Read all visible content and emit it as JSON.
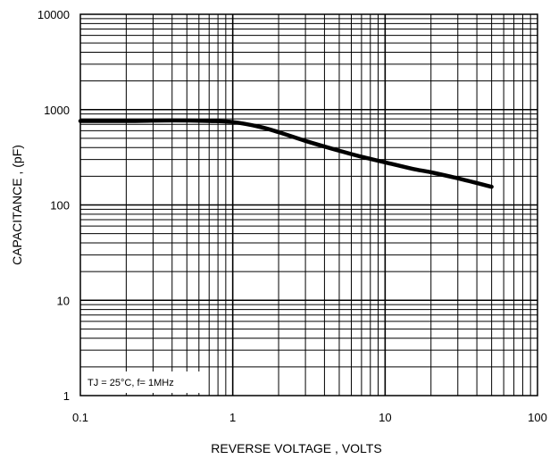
{
  "chart_data": {
    "type": "line",
    "xlabel": "REVERSE VOLTAGE , VOLTS",
    "ylabel": "CAPACITANCE , (pF)",
    "x_scale": "log",
    "y_scale": "log",
    "xlim": [
      0.1,
      100
    ],
    "ylim": [
      1,
      10000
    ],
    "grid": true,
    "x_ticks": [
      {
        "value": 0.1,
        "label": "0.1"
      },
      {
        "value": 1,
        "label": "1"
      },
      {
        "value": 10,
        "label": "10"
      },
      {
        "value": 100,
        "label": "100"
      }
    ],
    "y_ticks": [
      {
        "value": 1,
        "label": "1"
      },
      {
        "value": 10,
        "label": "10"
      },
      {
        "value": 100,
        "label": "100"
      },
      {
        "value": 1000,
        "label": "1000"
      },
      {
        "value": 10000,
        "label": "10000"
      }
    ],
    "annotation": "TJ = 25°C, f= 1MHz",
    "series": [
      {
        "color": "#000000",
        "points": [
          [
            0.1,
            760
          ],
          [
            0.2,
            760
          ],
          [
            0.4,
            770
          ],
          [
            0.7,
            760
          ],
          [
            1.0,
            740
          ],
          [
            1.5,
            660
          ],
          [
            2.0,
            580
          ],
          [
            3.0,
            470
          ],
          [
            5.0,
            370
          ],
          [
            7.0,
            320
          ],
          [
            10.0,
            280
          ],
          [
            15.0,
            240
          ],
          [
            20.0,
            220
          ],
          [
            30.0,
            190
          ],
          [
            50.0,
            155
          ]
        ]
      }
    ]
  }
}
